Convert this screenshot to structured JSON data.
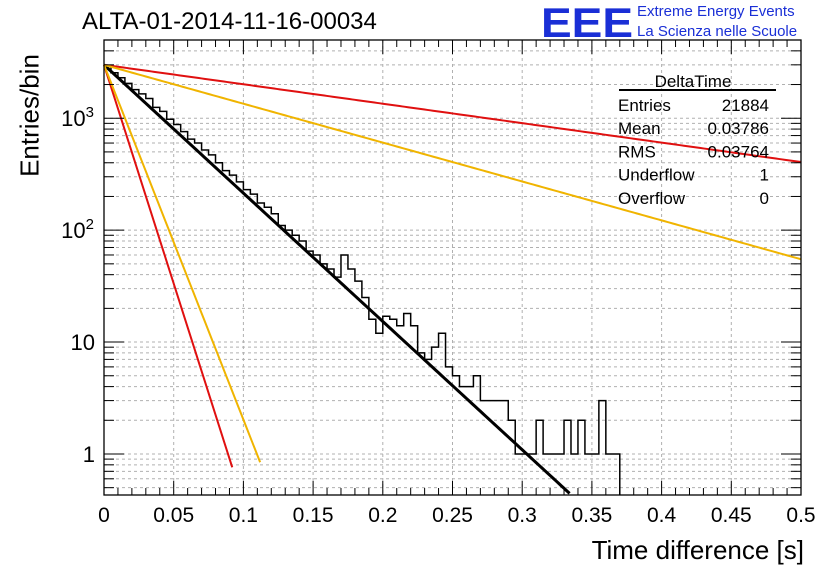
{
  "header": {
    "title": "ALTA-01-2014-11-16-00034",
    "logo_text": "EEE",
    "logo_line1": "Extreme Energy Events",
    "logo_line2": "La Scienza nelle Scuole"
  },
  "stats_box": {
    "name": "DeltaTime",
    "rows": [
      {
        "label": "Entries",
        "value": "21884"
      },
      {
        "label": "Mean",
        "value": "0.03786"
      },
      {
        "label": "RMS",
        "value": "0.03764"
      },
      {
        "label": "Underflow",
        "value": "1"
      },
      {
        "label": "Overflow",
        "value": "0"
      }
    ]
  },
  "chart_data": {
    "type": "line",
    "title": "ALTA-01-2014-11-16-00034",
    "xlabel": "Time difference [s]",
    "ylabel": "Entries/bin",
    "xlim": [
      0,
      0.5
    ],
    "ylim": [
      0.43,
      5000
    ],
    "y_scale": "log",
    "grid": true,
    "x_ticks": [
      "0",
      "0.05",
      "0.1",
      "0.15",
      "0.2",
      "0.25",
      "0.3",
      "0.35",
      "0.4",
      "0.45",
      "0.5"
    ],
    "y_ticks": [
      "1",
      "10",
      "10^2",
      "10^3"
    ],
    "histogram": {
      "bin_width": 0.005,
      "values": [
        2900,
        2550,
        2300,
        2050,
        1800,
        1650,
        1500,
        1250,
        1150,
        980,
        880,
        760,
        650,
        600,
        520,
        470,
        400,
        340,
        310,
        270,
        230,
        210,
        175,
        160,
        140,
        110,
        100,
        90,
        80,
        65,
        60,
        50,
        45,
        38,
        60,
        45,
        35,
        25,
        16,
        12,
        17,
        16,
        14,
        18,
        14,
        8,
        7,
        9,
        12,
        6,
        5,
        4,
        4,
        5,
        3,
        3,
        3,
        3,
        2,
        1,
        1,
        1,
        2,
        1,
        1,
        1,
        2,
        1,
        2,
        1,
        1,
        3,
        1,
        1
      ]
    },
    "fits": [
      {
        "color": "#000000",
        "y0": 3000,
        "slope_per_s": -26.4,
        "x_end": 0.335
      },
      {
        "color": "#e01010",
        "y0": 3000,
        "slope_per_s": -4.0,
        "x_end": 0.5
      },
      {
        "color": "#f0b400",
        "y0": 3000,
        "slope_per_s": -8.0,
        "x_end": 0.5
      },
      {
        "color": "#e01010",
        "y0": 3000,
        "slope_per_s": -90.0,
        "x_end": 0.092
      },
      {
        "color": "#f0b400",
        "y0": 3000,
        "slope_per_s": -73.0,
        "x_end": 0.112
      }
    ]
  }
}
